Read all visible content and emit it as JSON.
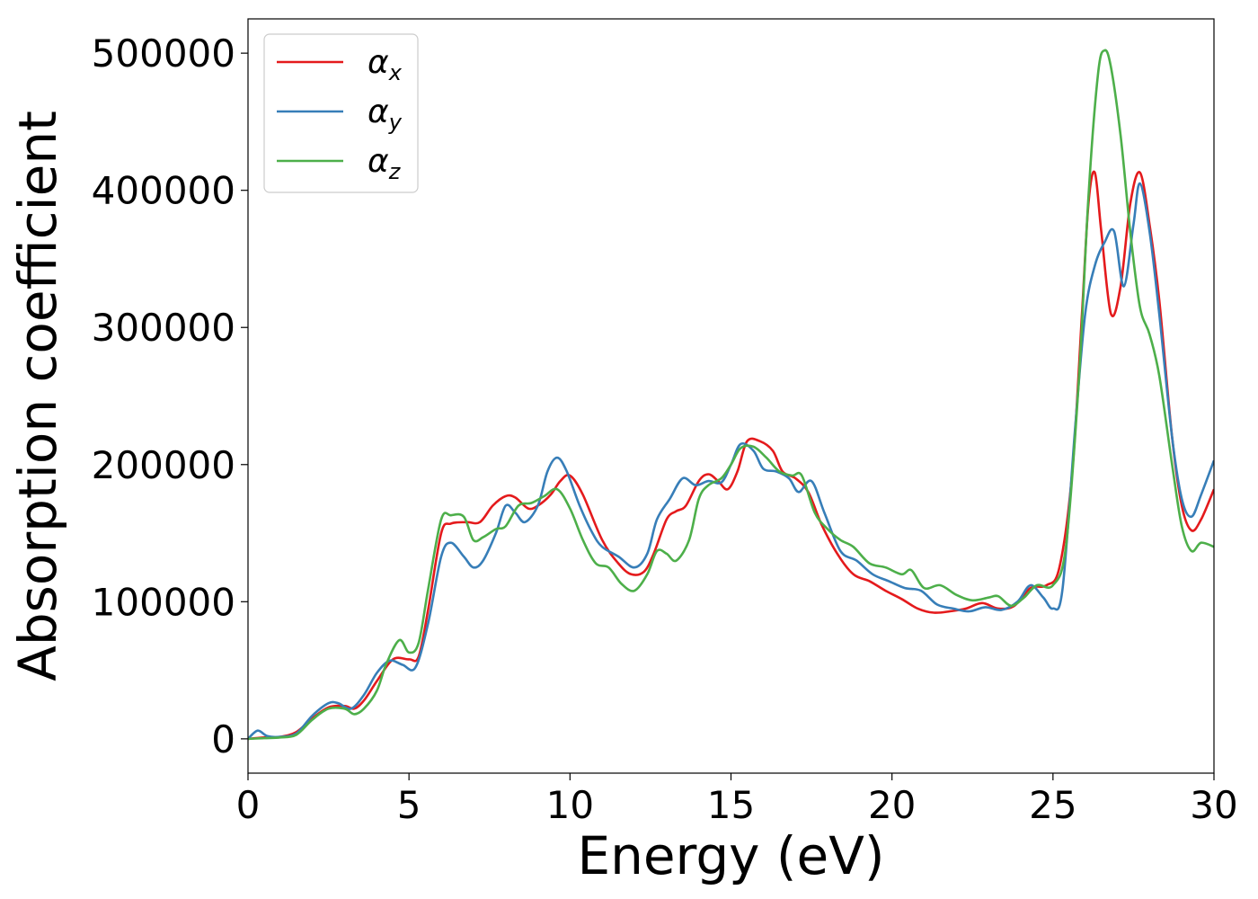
{
  "chart_data": {
    "type": "line",
    "xlabel": "Energy (eV)",
    "ylabel": "Absorption coefficient",
    "xlim": [
      0,
      30
    ],
    "ylim": [
      -25000,
      525000
    ],
    "xticks": [
      0,
      5,
      10,
      15,
      20,
      25,
      30
    ],
    "xtick_labels": [
      "0",
      "5",
      "10",
      "15",
      "20",
      "25",
      "30"
    ],
    "yticks": [
      0,
      100000,
      200000,
      300000,
      400000,
      500000
    ],
    "ytick_labels": [
      "0",
      "100000",
      "200000",
      "300000",
      "400000",
      "500000"
    ],
    "grid": false,
    "legend_position": "top-left",
    "series": [
      {
        "name": "α",
        "subscript": "x",
        "color": "#e41a1c",
        "x": [
          0,
          0.5,
          1,
          1.5,
          2,
          2.5,
          3,
          3.3,
          3.6,
          4,
          4.5,
          5,
          5.3,
          5.6,
          6,
          6.3,
          6.8,
          7.2,
          7.6,
          8,
          8.3,
          8.7,
          9,
          9.4,
          9.7,
          10,
          10.4,
          11,
          11.5,
          11.9,
          12.3,
          12.6,
          13,
          13.3,
          13.6,
          14,
          14.3,
          14.6,
          14.9,
          15.2,
          15.5,
          15.9,
          16.3,
          16.6,
          17,
          17.4,
          17.8,
          18.3,
          18.8,
          19.3,
          19.8,
          20.3,
          20.8,
          21.3,
          21.8,
          22.3,
          22.8,
          23.3,
          23.8,
          24.3,
          24.8,
          25.2,
          25.6,
          25.9,
          26.1,
          26.3,
          26.5,
          26.8,
          27.1,
          27.4,
          27.7,
          28,
          28.3,
          28.7,
          29,
          29.3,
          29.6,
          30
        ],
        "y": [
          0,
          1000,
          1500,
          5000,
          15000,
          23000,
          24000,
          22000,
          28000,
          42000,
          58000,
          58000,
          60000,
          95000,
          150000,
          157000,
          158000,
          158000,
          170000,
          177000,
          176000,
          168000,
          170000,
          178000,
          188000,
          192000,
          178000,
          145000,
          128000,
          120000,
          122000,
          135000,
          160000,
          166000,
          170000,
          188000,
          193000,
          188000,
          182000,
          195000,
          217000,
          217000,
          210000,
          195000,
          190000,
          180000,
          157000,
          135000,
          120000,
          115000,
          108000,
          102000,
          95000,
          92000,
          93000,
          95000,
          99000,
          95000,
          97000,
          110000,
          112000,
          125000,
          195000,
          310000,
          390000,
          413000,
          370000,
          310000,
          330000,
          390000,
          413000,
          375000,
          320000,
          220000,
          170000,
          152000,
          160000,
          182000
        ]
      },
      {
        "name": "α",
        "subscript": "y",
        "color": "#377eb8",
        "x": [
          0,
          0.3,
          0.6,
          1,
          1.5,
          2,
          2.5,
          2.8,
          3.2,
          3.6,
          4,
          4.4,
          4.8,
          5.2,
          5.6,
          6,
          6.3,
          6.7,
          7,
          7.3,
          7.7,
          8,
          8.3,
          8.6,
          9,
          9.3,
          9.6,
          9.9,
          10.3,
          10.7,
          11,
          11.5,
          12,
          12.4,
          12.7,
          13.1,
          13.5,
          13.9,
          14.3,
          14.7,
          15,
          15.3,
          15.7,
          16,
          16.4,
          16.8,
          17.1,
          17.5,
          17.9,
          18.4,
          18.9,
          19.4,
          19.9,
          20.4,
          20.9,
          21.4,
          21.9,
          22.4,
          22.9,
          23.4,
          23.9,
          24.3,
          24.7,
          25,
          25.3,
          25.7,
          26,
          26.3,
          26.6,
          26.9,
          27.2,
          27.5,
          27.7,
          28,
          28.3,
          28.7,
          29,
          29.3,
          29.6,
          30
        ],
        "y": [
          0,
          6000,
          2000,
          1500,
          4000,
          17000,
          26000,
          26000,
          22000,
          32000,
          48000,
          57000,
          54000,
          52000,
          85000,
          133000,
          143000,
          133000,
          125000,
          130000,
          150000,
          170000,
          165000,
          158000,
          170000,
          195000,
          205000,
          195000,
          170000,
          150000,
          140000,
          133000,
          125000,
          135000,
          160000,
          175000,
          190000,
          185000,
          188000,
          187000,
          200000,
          215000,
          210000,
          197000,
          195000,
          190000,
          180000,
          188000,
          165000,
          137000,
          130000,
          120000,
          115000,
          110000,
          108000,
          98000,
          95000,
          93000,
          96000,
          94000,
          100000,
          112000,
          103000,
          95000,
          110000,
          230000,
          310000,
          345000,
          362000,
          370000,
          330000,
          375000,
          405000,
          370000,
          310000,
          220000,
          175000,
          162000,
          178000,
          203000
        ]
      },
      {
        "name": "α",
        "subscript": "z",
        "color": "#4daf4a",
        "x": [
          0,
          0.5,
          1,
          1.5,
          2,
          2.5,
          3,
          3.3,
          3.6,
          4,
          4.3,
          4.7,
          5,
          5.3,
          5.6,
          6,
          6.3,
          6.7,
          7,
          7.3,
          7.7,
          8,
          8.4,
          8.8,
          9.2,
          9.6,
          10,
          10.4,
          10.8,
          11.2,
          11.6,
          12,
          12.4,
          12.7,
          13,
          13.3,
          13.7,
          14,
          14.3,
          14.7,
          15,
          15.3,
          15.7,
          16.1,
          16.5,
          16.9,
          17.2,
          17.6,
          18,
          18.4,
          18.8,
          19.3,
          19.8,
          20.3,
          20.6,
          21,
          21.5,
          22,
          22.5,
          23,
          23.3,
          23.7,
          24.1,
          24.5,
          25,
          25.4,
          25.8,
          26.1,
          26.4,
          26.6,
          26.8,
          27.1,
          27.4,
          27.7,
          28,
          28.3,
          28.7,
          29,
          29.3,
          29.6,
          30
        ],
        "y": [
          0,
          500,
          1000,
          3000,
          14000,
          22000,
          22000,
          18000,
          22000,
          35000,
          55000,
          72000,
          63000,
          70000,
          110000,
          160000,
          163000,
          162000,
          145000,
          147000,
          153000,
          155000,
          170000,
          172000,
          177000,
          182000,
          168000,
          145000,
          128000,
          125000,
          113000,
          108000,
          120000,
          137000,
          135000,
          130000,
          145000,
          175000,
          185000,
          190000,
          200000,
          212000,
          213000,
          205000,
          195000,
          192000,
          192000,
          165000,
          153000,
          145000,
          140000,
          128000,
          125000,
          120000,
          123000,
          110000,
          112000,
          105000,
          101000,
          103000,
          104000,
          97000,
          103000,
          112000,
          112000,
          140000,
          260000,
          395000,
          485000,
          502000,
          490000,
          440000,
          370000,
          315000,
          295000,
          265000,
          200000,
          155000,
          137000,
          143000,
          140000
        ]
      }
    ]
  }
}
